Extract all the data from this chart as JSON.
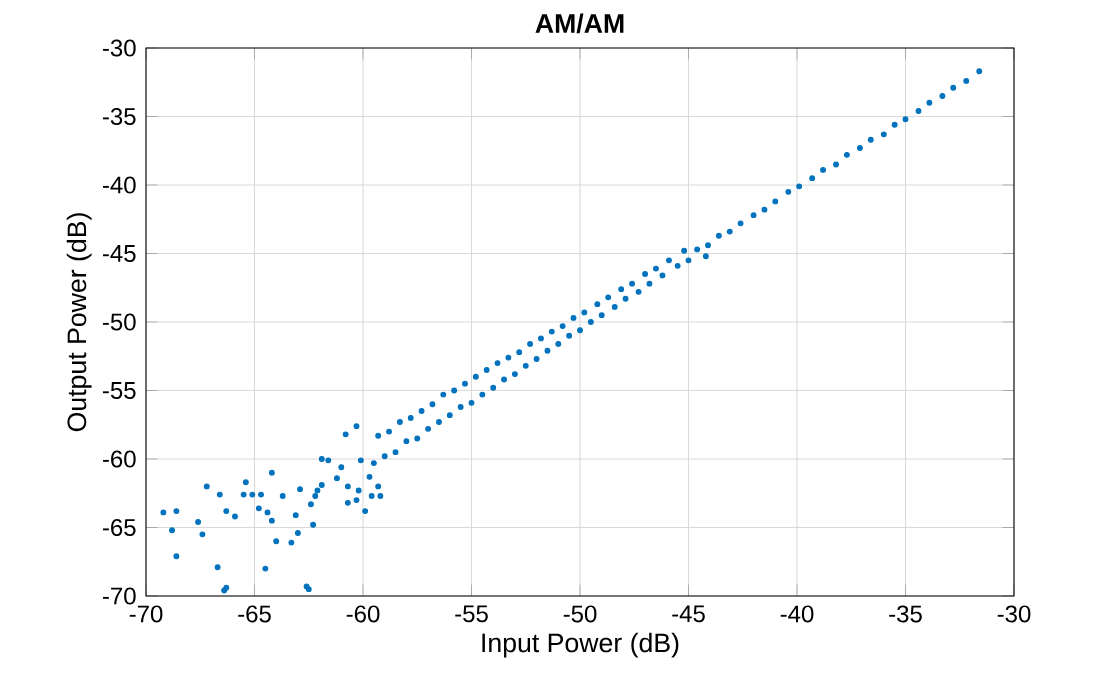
{
  "chart_data": {
    "type": "scatter",
    "title": "AM/AM",
    "xlabel": "Input Power (dB)",
    "ylabel": "Output Power (dB)",
    "xlim": [
      -70,
      -30
    ],
    "ylim": [
      -70,
      -30
    ],
    "xticks": [
      -70,
      -65,
      -60,
      -55,
      -50,
      -45,
      -40,
      -35,
      -30
    ],
    "yticks": [
      -70,
      -65,
      -60,
      -55,
      -50,
      -45,
      -40,
      -35,
      -30
    ],
    "grid": true,
    "series": [
      {
        "color": "#0072bd",
        "x": [
          -69.2,
          -68.6,
          -68.8,
          -68.6,
          -67.6,
          -67.4,
          -67.2,
          -66.7,
          -66.4,
          -66.3,
          -66.6,
          -66.3,
          -65.9,
          -65.5,
          -65.4,
          -65.1,
          -64.7,
          -64.8,
          -64.4,
          -64.2,
          -64.5,
          -64.2,
          -64.0,
          -63.7,
          -63.3,
          -63.1,
          -63.0,
          -62.9,
          -62.5,
          -62.3,
          -62.4,
          -62.2,
          -62.1,
          -61.9,
          -61.9,
          -61.6,
          -61.2,
          -61.0,
          -60.7,
          -60.7,
          -60.3,
          -60.2,
          -59.9,
          -59.7,
          -59.6,
          -59.2,
          -59.3,
          -60.8,
          -60.3,
          -60.1,
          -62.6,
          -31.6,
          -32.2,
          -32.8,
          -33.3,
          -33.9,
          -34.4,
          -35.0,
          -35.5,
          -36.0,
          -36.6,
          -37.1,
          -37.7,
          -38.2,
          -38.8,
          -39.3,
          -39.9,
          -40.4,
          -41.0,
          -41.5,
          -42.0,
          -42.6,
          -43.1,
          -43.6,
          -44.1,
          -44.6,
          -45.0,
          -45.2,
          -45.5,
          -45.9,
          -46.2,
          -46.5,
          -46.8,
          -47.0,
          -47.3,
          -47.6,
          -47.9,
          -48.1,
          -48.4,
          -48.7,
          -49.0,
          -49.2,
          -49.5,
          -49.8,
          -50.0,
          -50.3,
          -50.5,
          -50.8,
          -51.0,
          -51.3,
          -51.5,
          -51.8,
          -52.0,
          -52.3,
          -52.5,
          -52.8,
          -53.0,
          -53.3,
          -53.5,
          -53.8,
          -54.0,
          -54.3,
          -54.5,
          -54.8,
          -55.0,
          -55.3,
          -55.5,
          -55.8,
          -56.0,
          -56.3,
          -56.5,
          -56.8,
          -57.0,
          -57.3,
          -57.5,
          -57.8,
          -58.0,
          -58.3,
          -58.5,
          -58.8,
          -59.0,
          -59.3,
          -59.5,
          -44.2
        ],
        "values": [
          -63.9,
          -63.8,
          -65.2,
          -67.1,
          -64.6,
          -65.5,
          -62.0,
          -67.9,
          -69.6,
          -69.4,
          -62.6,
          -63.8,
          -64.2,
          -62.6,
          -61.7,
          -62.6,
          -62.6,
          -63.6,
          -63.9,
          -64.5,
          -68.0,
          -61.0,
          -66.0,
          -62.7,
          -66.1,
          -64.1,
          -65.4,
          -62.2,
          -69.5,
          -64.8,
          -63.3,
          -62.7,
          -62.3,
          -61.9,
          -60.0,
          -60.1,
          -61.4,
          -60.6,
          -62.0,
          -63.2,
          -63.0,
          -62.3,
          -63.8,
          -61.3,
          -62.7,
          -62.7,
          -62.0,
          -58.2,
          -57.6,
          -60.1,
          -69.3,
          -31.7,
          -32.4,
          -32.9,
          -33.5,
          -34.0,
          -34.6,
          -35.2,
          -35.6,
          -36.3,
          -36.7,
          -37.3,
          -37.8,
          -38.5,
          -38.9,
          -39.5,
          -40.1,
          -40.5,
          -41.2,
          -41.8,
          -42.2,
          -42.8,
          -43.4,
          -43.7,
          -44.4,
          -44.7,
          -45.5,
          -44.8,
          -45.9,
          -45.5,
          -46.6,
          -46.1,
          -47.2,
          -46.5,
          -47.8,
          -47.2,
          -48.3,
          -47.6,
          -48.9,
          -48.2,
          -49.5,
          -48.7,
          -50.0,
          -49.3,
          -50.6,
          -49.7,
          -51.0,
          -50.3,
          -51.6,
          -50.7,
          -52.1,
          -51.2,
          -52.7,
          -51.6,
          -53.2,
          -52.2,
          -53.8,
          -52.6,
          -54.2,
          -53.0,
          -54.8,
          -53.5,
          -55.3,
          -54.0,
          -55.9,
          -54.5,
          -56.2,
          -55.0,
          -56.8,
          -55.3,
          -57.3,
          -56.0,
          -57.8,
          -56.5,
          -58.5,
          -57.0,
          -58.7,
          -57.3,
          -59.5,
          -58.0,
          -59.8,
          -58.3,
          -60.3,
          -45.2
        ]
      }
    ]
  }
}
